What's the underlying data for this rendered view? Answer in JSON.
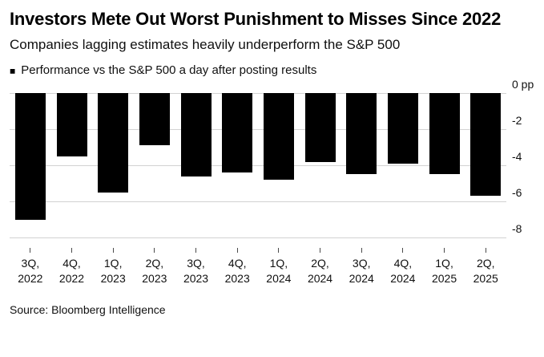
{
  "chart_data": {
    "type": "bar",
    "title": "Investors Mete Out Worst Punishment to Misses Since 2022",
    "subtitle": "Companies lagging estimates heavily underperform the S&P 500",
    "legend": {
      "marker": "■",
      "label": "Performance vs the S&P 500 a day after posting results",
      "position": "top-left"
    },
    "categories": [
      "3Q, 2022",
      "4Q, 2022",
      "1Q, 2023",
      "2Q, 2023",
      "3Q, 2023",
      "4Q, 2023",
      "1Q, 2024",
      "2Q, 2024",
      "3Q, 2024",
      "4Q, 2024",
      "1Q, 2025",
      "2Q, 2025"
    ],
    "values": [
      -7.0,
      -3.5,
      -5.5,
      -2.9,
      -4.6,
      -4.4,
      -4.8,
      -3.8,
      -4.5,
      -3.9,
      -4.5,
      -5.7
    ],
    "ylabel": "pp",
    "y_zero_label": "0 pp",
    "yticks": [
      0,
      -2,
      -4,
      -6,
      -8
    ],
    "ylim": [
      -8,
      0
    ],
    "grid": true,
    "bar_color": "#000000",
    "background": "#ffffff",
    "source": "Source: Bloomberg Intelligence"
  }
}
